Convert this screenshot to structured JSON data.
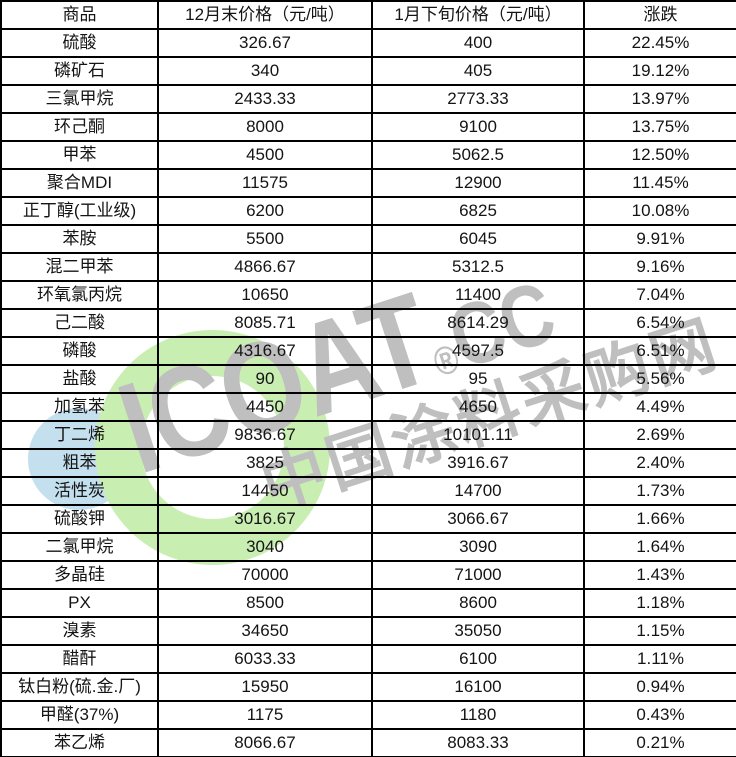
{
  "table": {
    "headers": [
      "商品",
      "12月末价格（元/吨）",
      "1月下旬价格（元/吨）",
      "涨跌"
    ],
    "rows": [
      {
        "product": "硫酸",
        "dec_price": "326.67",
        "jan_price": "400",
        "change": "22.45%"
      },
      {
        "product": "磷矿石",
        "dec_price": "340",
        "jan_price": "405",
        "change": "19.12%"
      },
      {
        "product": "三氯甲烷",
        "dec_price": "2433.33",
        "jan_price": "2773.33",
        "change": "13.97%"
      },
      {
        "product": "环己酮",
        "dec_price": "8000",
        "jan_price": "9100",
        "change": "13.75%"
      },
      {
        "product": "甲苯",
        "dec_price": "4500",
        "jan_price": "5062.5",
        "change": "12.50%"
      },
      {
        "product": "聚合MDI",
        "dec_price": "11575",
        "jan_price": "12900",
        "change": "11.45%"
      },
      {
        "product": "正丁醇(工业级)",
        "dec_price": "6200",
        "jan_price": "6825",
        "change": "10.08%"
      },
      {
        "product": "苯胺",
        "dec_price": "5500",
        "jan_price": "6045",
        "change": "9.91%"
      },
      {
        "product": "混二甲苯",
        "dec_price": "4866.67",
        "jan_price": "5312.5",
        "change": "9.16%"
      },
      {
        "product": "环氧氯丙烷",
        "dec_price": "10650",
        "jan_price": "11400",
        "change": "7.04%"
      },
      {
        "product": "己二酸",
        "dec_price": "8085.71",
        "jan_price": "8614.29",
        "change": "6.54%"
      },
      {
        "product": "磷酸",
        "dec_price": "4316.67",
        "jan_price": "4597.5",
        "change": "6.51%"
      },
      {
        "product": "盐酸",
        "dec_price": "90",
        "jan_price": "95",
        "change": "5.56%"
      },
      {
        "product": "加氢苯",
        "dec_price": "4450",
        "jan_price": "4650",
        "change": "4.49%"
      },
      {
        "product": "丁二烯",
        "dec_price": "9836.67",
        "jan_price": "10101.11",
        "change": "2.69%"
      },
      {
        "product": "粗苯",
        "dec_price": "3825",
        "jan_price": "3916.67",
        "change": "2.40%"
      },
      {
        "product": "活性炭",
        "dec_price": "14450",
        "jan_price": "14700",
        "change": "1.73%"
      },
      {
        "product": "硫酸钾",
        "dec_price": "3016.67",
        "jan_price": "3066.67",
        "change": "1.66%"
      },
      {
        "product": "二氯甲烷",
        "dec_price": "3040",
        "jan_price": "3090",
        "change": "1.64%"
      },
      {
        "product": "多晶硅",
        "dec_price": "70000",
        "jan_price": "71000",
        "change": "1.43%"
      },
      {
        "product": "PX",
        "dec_price": "8500",
        "jan_price": "8600",
        "change": "1.18%"
      },
      {
        "product": "溴素",
        "dec_price": "34650",
        "jan_price": "35050",
        "change": "1.15%"
      },
      {
        "product": "醋酐",
        "dec_price": "6033.33",
        "jan_price": "6100",
        "change": "1.11%"
      },
      {
        "product": "钛白粉(硫.金.厂)",
        "dec_price": "15950",
        "jan_price": "16100",
        "change": "0.94%"
      },
      {
        "product": "甲醛(37%)",
        "dec_price": "1175",
        "jan_price": "1180",
        "change": "0.43%"
      },
      {
        "product": "苯乙烯",
        "dec_price": "8066.67",
        "jan_price": "8083.33",
        "change": "0.21%"
      }
    ]
  },
  "watermark": {
    "brand": "ICOAT",
    "reg_mark": "®",
    "domain": "CC",
    "slogan": "中国涂料采购网",
    "colors": {
      "green": "#c9eeb2",
      "blue": "#c4dfed",
      "gray": "#bfbfbf"
    }
  }
}
